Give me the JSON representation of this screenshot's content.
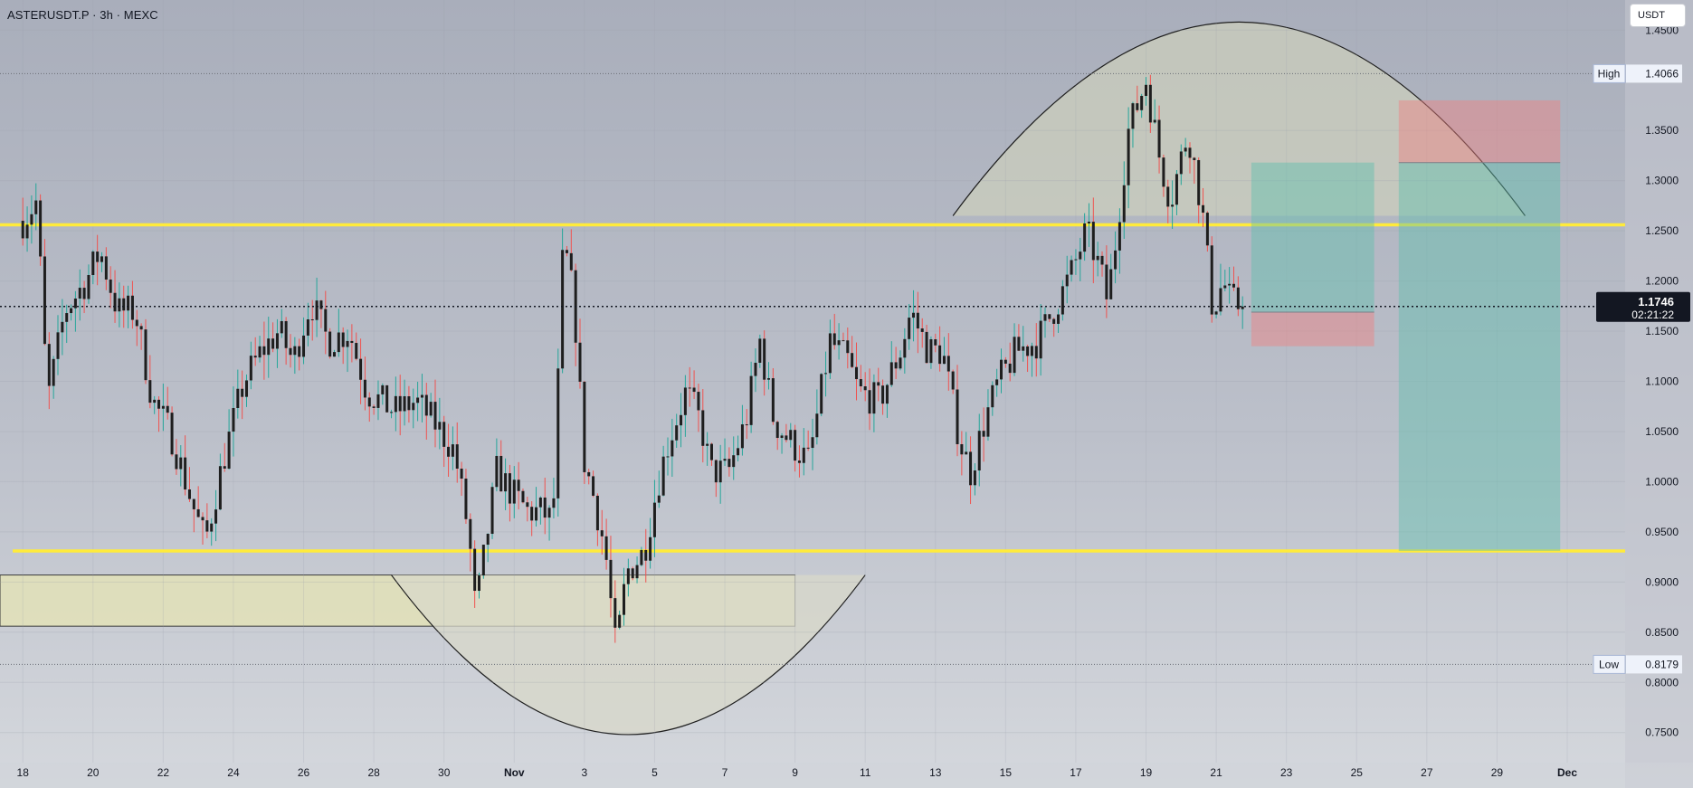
{
  "header": {
    "symbol_title": "ASTERUSDT.P · 3h · MEXC",
    "currency_button": "USDT"
  },
  "chart_data": {
    "type": "candlestick",
    "symbol": "ASTERUSDT.P",
    "interval": "3h",
    "exchange": "MEXC",
    "ylim": [
      0.72,
      1.48
    ],
    "y_ticks": [
      "1.4500",
      "1.4066",
      "1.3500",
      "1.3000",
      "1.2500",
      "1.2000",
      "1.1746",
      "1.1500",
      "1.1000",
      "1.0500",
      "1.0000",
      "0.9500",
      "0.9000",
      "0.8500",
      "0.8179",
      "0.8000",
      "0.7500"
    ],
    "y_tick_values": [
      1.45,
      1.35,
      1.3,
      1.25,
      1.2,
      1.15,
      1.1,
      1.05,
      1.0,
      0.95,
      0.9,
      0.85,
      0.8,
      0.75
    ],
    "x_tick_labels": [
      "18",
      "20",
      "22",
      "24",
      "26",
      "28",
      "30",
      "Nov",
      "3",
      "5",
      "7",
      "9",
      "11",
      "13",
      "15",
      "17",
      "19",
      "21",
      "23",
      "25",
      "27",
      "29",
      "Dec"
    ],
    "x_tick_day_index": [
      0,
      2,
      4,
      6,
      8,
      10,
      12,
      14,
      16,
      18,
      20,
      22,
      24,
      26,
      28,
      30,
      32,
      34,
      36,
      38,
      40,
      42,
      44
    ],
    "x_range_days": [
      -0.65,
      45.65
    ],
    "high": {
      "label": "High",
      "value": "1.4066"
    },
    "low": {
      "label": "Low",
      "value": "0.8179"
    },
    "last_price": {
      "value": "1.1746",
      "countdown": "02:21:22"
    },
    "colors": {
      "up": "#26a69a",
      "down": "#ef5350",
      "level_line": "#ffeb3b",
      "wick_dark": "#1e1e1e"
    },
    "levels": [
      1.256,
      0.931
    ],
    "anchors": [
      [
        0.0,
        1.26
      ],
      [
        0.4,
        1.28
      ],
      [
        0.7,
        1.08
      ],
      [
        1.2,
        1.17
      ],
      [
        1.8,
        1.2
      ],
      [
        2.2,
        1.23
      ],
      [
        2.7,
        1.17
      ],
      [
        3.2,
        1.17
      ],
      [
        3.7,
        1.08
      ],
      [
        4.2,
        1.05
      ],
      [
        4.9,
        0.97
      ],
      [
        5.2,
        0.94
      ],
      [
        5.7,
        1.02
      ],
      [
        6.3,
        1.1
      ],
      [
        6.8,
        1.13
      ],
      [
        7.3,
        1.15
      ],
      [
        7.7,
        1.12
      ],
      [
        8.2,
        1.18
      ],
      [
        8.7,
        1.14
      ],
      [
        9.3,
        1.15
      ],
      [
        9.8,
        1.09
      ],
      [
        10.6,
        1.07
      ],
      [
        11.2,
        1.08
      ],
      [
        11.7,
        1.06
      ],
      [
        12.3,
        1.03
      ],
      [
        12.7,
        0.95
      ],
      [
        12.9,
        0.87
      ],
      [
        13.5,
        1.01
      ],
      [
        13.9,
        0.99
      ],
      [
        14.4,
        0.97
      ],
      [
        14.8,
        0.97
      ],
      [
        15.1,
        0.96
      ],
      [
        15.4,
        1.24
      ],
      [
        15.7,
        1.18
      ],
      [
        16.0,
        1.02
      ],
      [
        16.3,
        0.98
      ],
      [
        16.6,
        0.93
      ],
      [
        16.9,
        0.83
      ],
      [
        17.2,
        0.91
      ],
      [
        17.7,
        0.93
      ],
      [
        18.1,
        1.0
      ],
      [
        18.4,
        1.04
      ],
      [
        18.9,
        1.09
      ],
      [
        19.3,
        1.06
      ],
      [
        19.6,
        1.01
      ],
      [
        20.1,
        1.01
      ],
      [
        20.6,
        1.06
      ],
      [
        21.0,
        1.14
      ],
      [
        21.4,
        1.06
      ],
      [
        22.1,
        1.03
      ],
      [
        22.4,
        1.02
      ],
      [
        23.0,
        1.14
      ],
      [
        23.5,
        1.12
      ],
      [
        23.8,
        1.09
      ],
      [
        24.4,
        1.08
      ],
      [
        25.0,
        1.13
      ],
      [
        25.3,
        1.17
      ],
      [
        25.8,
        1.13
      ],
      [
        26.2,
        1.13
      ],
      [
        26.7,
        1.04
      ],
      [
        27.0,
        1.01
      ],
      [
        27.4,
        1.06
      ],
      [
        27.8,
        1.1
      ],
      [
        28.3,
        1.13
      ],
      [
        28.9,
        1.14
      ],
      [
        29.5,
        1.18
      ],
      [
        29.9,
        1.21
      ],
      [
        30.3,
        1.25
      ],
      [
        30.7,
        1.21
      ],
      [
        30.9,
        1.18
      ],
      [
        31.1,
        1.23
      ],
      [
        31.5,
        1.35
      ],
      [
        32.0,
        1.4
      ],
      [
        32.4,
        1.32
      ],
      [
        32.7,
        1.28
      ],
      [
        33.2,
        1.35
      ],
      [
        33.6,
        1.27
      ],
      [
        33.9,
        1.17
      ],
      [
        34.2,
        1.2
      ],
      [
        34.4,
        1.18
      ],
      [
        34.7,
        1.1746
      ]
    ],
    "drawings": [
      {
        "type": "rectangle",
        "name": "demand-zone",
        "x": [
          -0.65,
          22.0
        ],
        "y": [
          0.907,
          0.856
        ],
        "fill": "#e6e4b4",
        "stroke": "#3a3a3a"
      },
      {
        "type": "arc",
        "name": "bowl-arc",
        "x_start": 10.5,
        "x_end": 24.0,
        "y_start": 0.907,
        "y_end": 0.907,
        "y_bottom": 0.748,
        "fill": "#d8d8ca"
      },
      {
        "type": "arc",
        "name": "dome-arc",
        "x_start": 26.5,
        "x_end": 42.8,
        "y_start": 1.265,
        "y_end": 1.265,
        "y_top": 1.458,
        "fill": "#cbcdbc"
      },
      {
        "type": "long-position",
        "name": "long-position-small",
        "x": [
          35.0,
          38.5
        ],
        "entry": 1.169,
        "target": 1.318,
        "stop": 1.135
      },
      {
        "type": "short-position",
        "name": "short-position-large",
        "x": [
          39.2,
          43.8
        ],
        "entry": 1.318,
        "target": 0.931,
        "stop": 1.38
      }
    ]
  }
}
